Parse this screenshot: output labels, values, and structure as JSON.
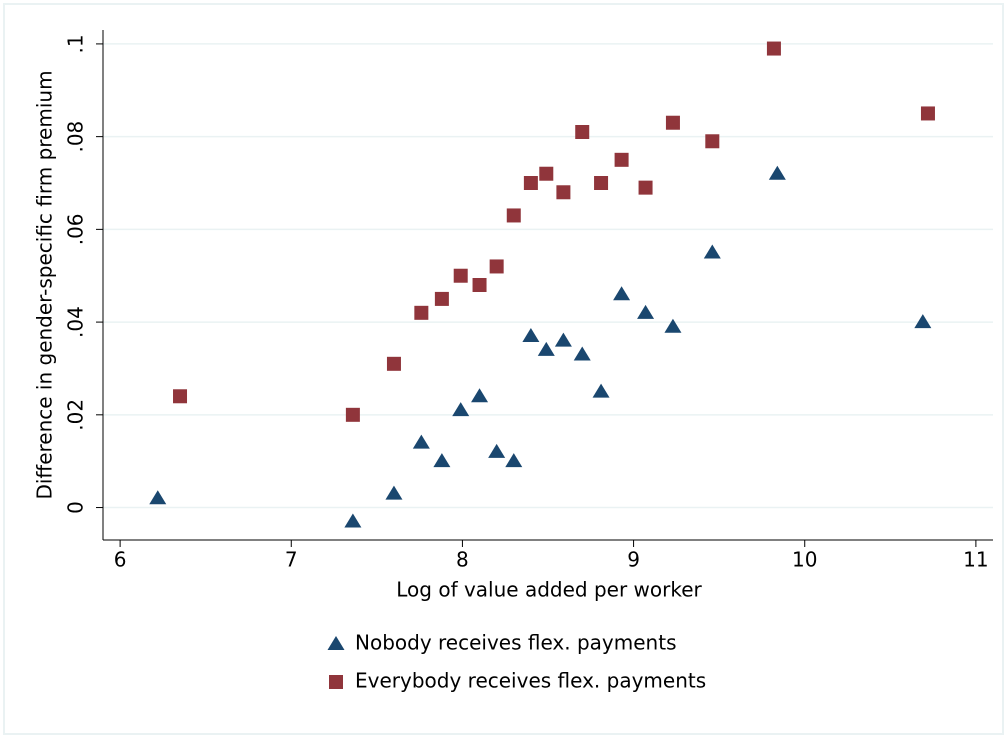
{
  "chart_data": {
    "type": "scatter",
    "x_label": "Log of value added per worker",
    "y_label": "Difference in gender-specific firm premium",
    "xlim": [
      5.9,
      11.1
    ],
    "ylim": [
      -0.007,
      0.103
    ],
    "xticks": [
      6,
      7,
      8,
      9,
      10,
      11
    ],
    "yticks": [
      0,
      {
        "value": 0.02,
        "label": ".02"
      },
      {
        "value": 0.04,
        "label": ".04"
      },
      {
        "value": 0.06,
        "label": ".06"
      },
      {
        "value": 0.08,
        "label": ".08"
      },
      {
        "value": 0.1,
        "label": ".1"
      }
    ],
    "grid": true,
    "legend": "bottom",
    "series": [
      {
        "name": "Nobody receives flex. payments",
        "color": "#1a476f",
        "marker": "triangle",
        "x": [
          6.22,
          7.36,
          7.6,
          7.76,
          7.88,
          7.99,
          8.1,
          8.2,
          8.3,
          8.4,
          8.49,
          8.59,
          8.7,
          8.81,
          8.93,
          9.07,
          9.23,
          9.46,
          9.84,
          10.69
        ],
        "values": [
          0.002,
          -0.003,
          0.003,
          0.014,
          0.01,
          0.021,
          0.024,
          0.012,
          0.01,
          0.037,
          0.034,
          0.036,
          0.033,
          0.025,
          0.046,
          0.042,
          0.039,
          0.055,
          0.072,
          0.04
        ]
      },
      {
        "name": "Everybody receives flex. payments",
        "color": "#90353b",
        "marker": "square",
        "x": [
          6.35,
          7.36,
          7.6,
          7.76,
          7.88,
          7.99,
          8.1,
          8.2,
          8.3,
          8.4,
          8.49,
          8.59,
          8.7,
          8.81,
          8.93,
          9.07,
          9.23,
          9.46,
          9.82,
          10.72
        ],
        "values": [
          0.024,
          0.02,
          0.031,
          0.042,
          0.045,
          0.05,
          0.048,
          0.052,
          0.063,
          0.07,
          0.072,
          0.068,
          0.081,
          0.07,
          0.075,
          0.069,
          0.083,
          0.079,
          0.099,
          0.085
        ]
      }
    ]
  }
}
